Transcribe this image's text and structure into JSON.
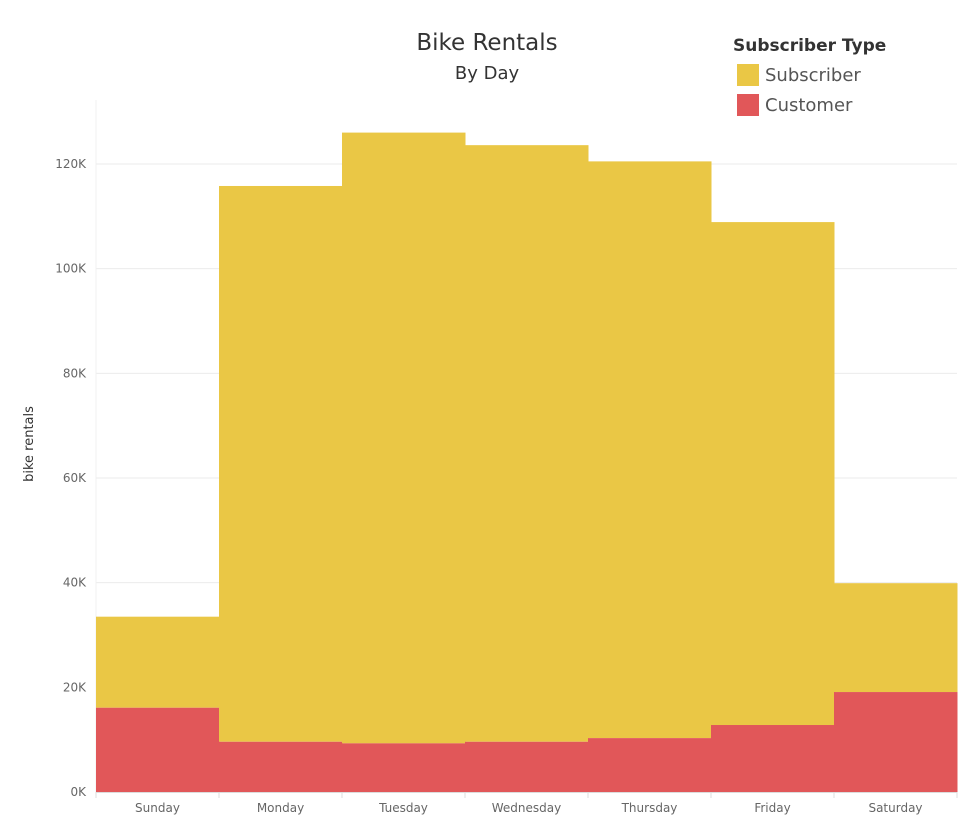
{
  "title": "Bike Rentals",
  "subtitle": "By Day",
  "legend": {
    "title": "Subscriber Type",
    "items": [
      {
        "label": "Subscriber",
        "color": "#EAC745"
      },
      {
        "label": "Customer",
        "color": "#E15759"
      }
    ]
  },
  "chart_data": {
    "type": "area",
    "stacked": true,
    "step": true,
    "title": "Bike Rentals",
    "subtitle": "By Day",
    "ylabel": "bike rentals",
    "xlabel": "",
    "categories": [
      "Sunday",
      "Monday",
      "Tuesday",
      "Wednesday",
      "Thursday",
      "Friday",
      "Saturday"
    ],
    "series": [
      {
        "name": "Customer",
        "color": "#E15759",
        "values": [
          16100,
          9600,
          9300,
          9600,
          10300,
          12800,
          19100
        ]
      },
      {
        "name": "Subscriber",
        "color": "#EAC745",
        "values": [
          17400,
          106200,
          116700,
          114000,
          110200,
          96100,
          20800
        ]
      }
    ],
    "ylim": [
      0,
      130000
    ],
    "yticks": [
      0,
      20000,
      40000,
      60000,
      80000,
      100000,
      120000
    ],
    "ytick_labels": [
      "0K",
      "20K",
      "40K",
      "60K",
      "80K",
      "100K",
      "120K"
    ],
    "grid": true,
    "legend_position": "top-right"
  }
}
